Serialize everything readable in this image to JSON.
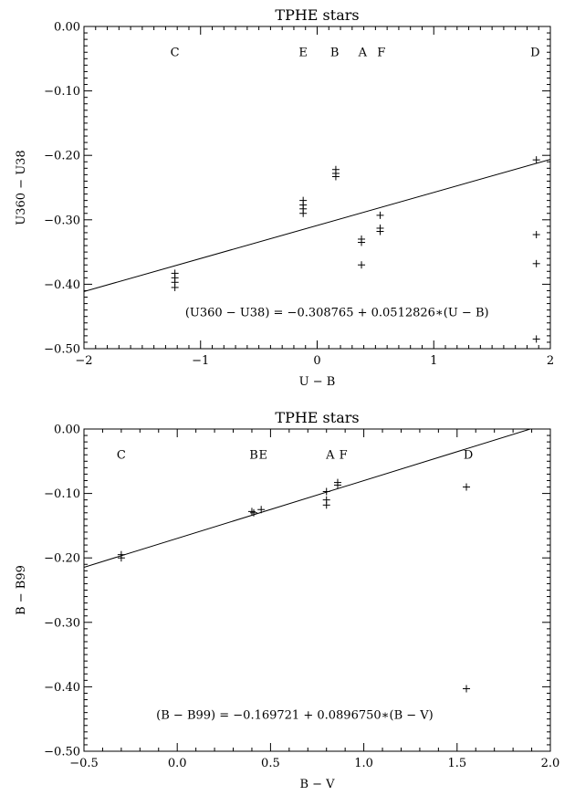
{
  "chart_data": [
    {
      "type": "scatter",
      "title": "TPHE stars",
      "xlabel": "U − B",
      "ylabel": "U360 − U38",
      "xlim": [
        -2,
        2
      ],
      "ylim": [
        -0.5,
        0.0
      ],
      "xticks": [
        "−2",
        "−1",
        "0",
        "1",
        "2"
      ],
      "xtick_values": [
        -2,
        -1,
        0,
        1,
        2
      ],
      "yticks": [
        "−0.50",
        "−0.40",
        "−0.30",
        "−0.20",
        "−0.10",
        "0.00"
      ],
      "ytick_values": [
        -0.5,
        -0.4,
        -0.3,
        -0.2,
        -0.1,
        0.0
      ],
      "grid": false,
      "marker": "+",
      "series": [
        {
          "points": [
            {
              "x": -1.22,
              "y": -0.383
            },
            {
              "x": -1.22,
              "y": -0.39
            },
            {
              "x": -1.22,
              "y": -0.397
            },
            {
              "x": -1.22,
              "y": -0.405
            },
            {
              "x": -0.12,
              "y": -0.27
            },
            {
              "x": -0.12,
              "y": -0.277
            },
            {
              "x": -0.12,
              "y": -0.283
            },
            {
              "x": -0.12,
              "y": -0.29
            },
            {
              "x": 0.16,
              "y": -0.222
            },
            {
              "x": 0.16,
              "y": -0.228
            },
            {
              "x": 0.16,
              "y": -0.233
            },
            {
              "x": 0.38,
              "y": -0.33
            },
            {
              "x": 0.38,
              "y": -0.335
            },
            {
              "x": 0.38,
              "y": -0.37
            },
            {
              "x": 0.54,
              "y": -0.293
            },
            {
              "x": 0.54,
              "y": -0.313
            },
            {
              "x": 0.54,
              "y": -0.318
            },
            {
              "x": 1.88,
              "y": -0.207
            },
            {
              "x": 1.88,
              "y": -0.323
            },
            {
              "x": 1.88,
              "y": -0.368
            },
            {
              "x": 1.88,
              "y": -0.485
            }
          ]
        }
      ],
      "fit_line": {
        "intercept": -0.308765,
        "slope": 0.0512826
      },
      "equation": "(U360 − U38) = −0.308765 + 0.0512826∗(U − B)",
      "equation_position": {
        "x": 0.17,
        "y": -0.443
      },
      "annotations": [
        {
          "text": "C",
          "x": -1.22,
          "y": -0.04
        },
        {
          "text": "E",
          "x": -0.12,
          "y": -0.04
        },
        {
          "text": "B",
          "x": 0.15,
          "y": -0.04
        },
        {
          "text": "A",
          "x": 0.39,
          "y": -0.04
        },
        {
          "text": "F",
          "x": 0.55,
          "y": -0.04
        },
        {
          "text": "D",
          "x": 1.87,
          "y": -0.04
        }
      ]
    },
    {
      "type": "scatter",
      "title": "TPHE stars",
      "xlabel": "B − V",
      "ylabel": "B − B99",
      "xlim": [
        -0.5,
        2.0
      ],
      "ylim": [
        -0.5,
        0.0
      ],
      "xticks": [
        "−0.5",
        "0.0",
        "0.5",
        "1.0",
        "1.5",
        "2.0"
      ],
      "xtick_values": [
        -0.5,
        0.0,
        0.5,
        1.0,
        1.5,
        2.0
      ],
      "yticks": [
        "−0.50",
        "−0.40",
        "−0.30",
        "−0.20",
        "−0.10",
        "0.00"
      ],
      "ytick_values": [
        -0.5,
        -0.4,
        -0.3,
        -0.2,
        -0.1,
        0.0
      ],
      "grid": false,
      "marker": "+",
      "series": [
        {
          "points": [
            {
              "x": -0.3,
              "y": -0.195
            },
            {
              "x": -0.3,
              "y": -0.2
            },
            {
              "x": 0.4,
              "y": -0.128
            },
            {
              "x": 0.41,
              "y": -0.13
            },
            {
              "x": 0.45,
              "y": -0.125
            },
            {
              "x": 0.8,
              "y": -0.097
            },
            {
              "x": 0.8,
              "y": -0.11
            },
            {
              "x": 0.8,
              "y": -0.118
            },
            {
              "x": 0.86,
              "y": -0.083
            },
            {
              "x": 0.86,
              "y": -0.087
            },
            {
              "x": 1.55,
              "y": -0.09
            },
            {
              "x": 1.55,
              "y": -0.403
            }
          ]
        }
      ],
      "fit_line": {
        "intercept": -0.169721,
        "slope": 0.089675
      },
      "equation": "(B − B99) = −0.169721 + 0.0896750∗(B − V)",
      "equation_position": {
        "x": 0.63,
        "y": -0.443
      },
      "annotations": [
        {
          "text": "C",
          "x": -0.3,
          "y": -0.04
        },
        {
          "text": "B",
          "x": 0.41,
          "y": -0.04
        },
        {
          "text": "E",
          "x": 0.46,
          "y": -0.04
        },
        {
          "text": "A",
          "x": 0.82,
          "y": -0.04
        },
        {
          "text": "F",
          "x": 0.89,
          "y": -0.04
        },
        {
          "text": "D",
          "x": 1.56,
          "y": -0.04
        }
      ]
    }
  ]
}
